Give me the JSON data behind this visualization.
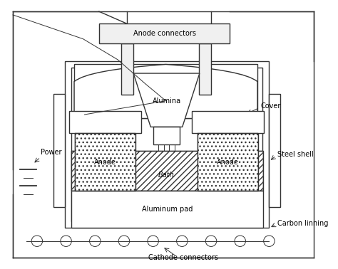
{
  "fig_width": 4.74,
  "fig_height": 3.78,
  "dpi": 100,
  "bg_color": "#ffffff",
  "lc": "#333333",
  "lw": 1.0,
  "tlw": 0.7,
  "labels": {
    "anode_connectors": "Anode connectors",
    "cover": "Cover",
    "alumina": "Alumina",
    "anode_left": "Anode",
    "anode_right": "Anode",
    "bath": "Bath",
    "aluminum_pad": "Aluminum pad",
    "steel_shell": "Steel shell",
    "carbon_linning": "Carbon linning",
    "cathode_connectors": "Cathode connectors",
    "power": "Power"
  },
  "fs": 7.0
}
